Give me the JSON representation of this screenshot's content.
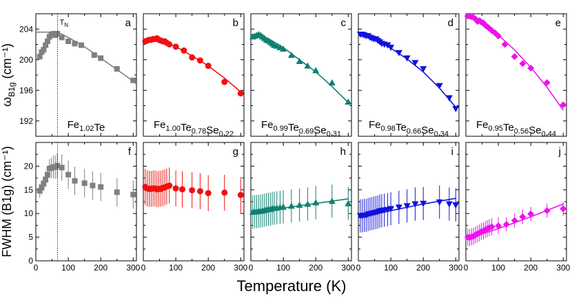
{
  "figure": {
    "xlabel": "Temperature (K)",
    "ylabel_top": "ω_B1g (cm⁻¹)",
    "ylabel_bottom": "FWHM (B1g) (cm⁻¹)",
    "tn_label": "T_N",
    "tn_value": 67
  },
  "chart_data": [
    {
      "type": "scatter",
      "panel": "a",
      "row": "top",
      "color": "#808080",
      "marker": "square",
      "compound": [
        "Fe",
        "1.02",
        "Te",
        ""
      ],
      "xlim": [
        0,
        310
      ],
      "ylim": [
        190,
        206
      ],
      "xticks": [
        0,
        100,
        200,
        300
      ],
      "yticks": [
        192,
        196,
        200,
        204
      ],
      "points": [
        [
          12,
          200.4
        ],
        [
          18,
          201.0
        ],
        [
          24,
          201.3
        ],
        [
          30,
          201.9
        ],
        [
          36,
          202.4
        ],
        [
          42,
          203.0
        ],
        [
          48,
          203.3
        ],
        [
          54,
          203.4
        ],
        [
          60,
          203.2
        ],
        [
          66,
          203.4
        ],
        [
          80,
          202.9
        ],
        [
          100,
          202.4
        ],
        [
          120,
          202.1
        ],
        [
          140,
          201.9
        ],
        [
          180,
          200.6
        ],
        [
          200,
          200.2
        ],
        [
          250,
          198.8
        ],
        [
          300,
          197.3
        ]
      ],
      "fit": [
        [
          0,
          203.6
        ],
        [
          67,
          203.6
        ],
        [
          100,
          202.9
        ],
        [
          150,
          201.7
        ],
        [
          200,
          200.2
        ],
        [
          250,
          198.7
        ],
        [
          300,
          197.2
        ],
        [
          310,
          196.8
        ]
      ]
    },
    {
      "type": "scatter",
      "panel": "b",
      "row": "top",
      "color": "#ee1111",
      "marker": "circle",
      "compound": [
        "Fe",
        "1.00",
        "Te",
        "0.78",
        "Se",
        "0.22"
      ],
      "xlim": [
        0,
        310
      ],
      "ylim": [
        190,
        206
      ],
      "points": [
        [
          6,
          202.4
        ],
        [
          12,
          202.5
        ],
        [
          18,
          202.6
        ],
        [
          24,
          202.6
        ],
        [
          30,
          202.7
        ],
        [
          36,
          202.7
        ],
        [
          42,
          202.8
        ],
        [
          48,
          202.6
        ],
        [
          54,
          202.5
        ],
        [
          60,
          202.4
        ],
        [
          66,
          202.4
        ],
        [
          72,
          202.2
        ],
        [
          80,
          202.0
        ],
        [
          100,
          201.7
        ],
        [
          125,
          201.2
        ],
        [
          150,
          200.3
        ],
        [
          175,
          199.9
        ],
        [
          200,
          199.2
        ],
        [
          250,
          197.1
        ],
        [
          300,
          195.6
        ]
      ],
      "fit": [
        [
          0,
          202.5
        ],
        [
          30,
          202.6
        ],
        [
          60,
          202.4
        ],
        [
          100,
          201.7
        ],
        [
          150,
          200.5
        ],
        [
          200,
          199.2
        ],
        [
          250,
          197.6
        ],
        [
          300,
          195.8
        ]
      ]
    },
    {
      "type": "scatter",
      "panel": "c",
      "row": "top",
      "color": "#108070",
      "marker": "triangle-up",
      "compound": [
        "Fe",
        "0.99",
        "Te",
        "0.69",
        "Se",
        "0.31"
      ],
      "xlim": [
        0,
        310
      ],
      "ylim": [
        190,
        206
      ],
      "points": [
        [
          6,
          203.0
        ],
        [
          12,
          203.1
        ],
        [
          18,
          203.2
        ],
        [
          24,
          203.3
        ],
        [
          30,
          203.2
        ],
        [
          36,
          203.0
        ],
        [
          42,
          202.8
        ],
        [
          48,
          202.6
        ],
        [
          54,
          202.5
        ],
        [
          60,
          202.3
        ],
        [
          66,
          202.1
        ],
        [
          72,
          201.9
        ],
        [
          80,
          201.8
        ],
        [
          90,
          201.6
        ],
        [
          100,
          201.4
        ],
        [
          125,
          200.6
        ],
        [
          150,
          199.8
        ],
        [
          175,
          199.2
        ],
        [
          200,
          198.6
        ],
        [
          250,
          197.0
        ],
        [
          300,
          194.5
        ]
      ],
      "fit": [
        [
          0,
          203.3
        ],
        [
          30,
          203.2
        ],
        [
          60,
          202.6
        ],
        [
          100,
          201.6
        ],
        [
          150,
          200.0
        ],
        [
          200,
          198.4
        ],
        [
          250,
          196.5
        ],
        [
          300,
          194.4
        ]
      ]
    },
    {
      "type": "scatter",
      "panel": "d",
      "row": "top",
      "color": "#1010dd",
      "marker": "triangle-down",
      "compound": [
        "Fe",
        "0.98",
        "Te",
        "0.66",
        "Se",
        "0.34"
      ],
      "xlim": [
        0,
        310
      ],
      "ylim": [
        190,
        206
      ],
      "points": [
        [
          6,
          203.3
        ],
        [
          12,
          203.3
        ],
        [
          18,
          203.2
        ],
        [
          24,
          203.1
        ],
        [
          30,
          203.1
        ],
        [
          36,
          202.9
        ],
        [
          42,
          202.8
        ],
        [
          48,
          202.7
        ],
        [
          54,
          202.7
        ],
        [
          60,
          202.5
        ],
        [
          66,
          202.3
        ],
        [
          72,
          202.1
        ],
        [
          80,
          202.0
        ],
        [
          90,
          201.9
        ],
        [
          100,
          201.6
        ],
        [
          125,
          200.9
        ],
        [
          150,
          200.2
        ],
        [
          175,
          199.6
        ],
        [
          200,
          198.8
        ],
        [
          250,
          196.6
        ],
        [
          280,
          195.0
        ],
        [
          300,
          193.6
        ]
      ],
      "fit": [
        [
          0,
          203.4
        ],
        [
          30,
          203.1
        ],
        [
          60,
          202.5
        ],
        [
          100,
          201.5
        ],
        [
          150,
          200.1
        ],
        [
          200,
          198.4
        ],
        [
          250,
          196.3
        ],
        [
          300,
          193.8
        ]
      ]
    },
    {
      "type": "scatter",
      "panel": "e",
      "row": "top",
      "color": "#ee11ee",
      "marker": "diamond",
      "compound": [
        "Fe",
        "0.95",
        "Te",
        "0.56",
        "Se",
        "0.44"
      ],
      "xlim": [
        0,
        310
      ],
      "ylim": [
        190,
        206
      ],
      "points": [
        [
          6,
          205.7
        ],
        [
          12,
          205.7
        ],
        [
          18,
          205.6
        ],
        [
          24,
          205.5
        ],
        [
          30,
          205.3
        ],
        [
          36,
          205.0
        ],
        [
          42,
          205.1
        ],
        [
          48,
          204.9
        ],
        [
          54,
          204.8
        ],
        [
          60,
          204.5
        ],
        [
          66,
          204.3
        ],
        [
          72,
          204.1
        ],
        [
          80,
          203.8
        ],
        [
          90,
          203.5
        ],
        [
          100,
          203.1
        ],
        [
          120,
          202.0
        ],
        [
          150,
          200.4
        ],
        [
          175,
          199.5
        ],
        [
          200,
          198.9
        ],
        [
          250,
          197.0
        ],
        [
          300,
          194.1
        ]
      ],
      "fit": [
        [
          0,
          205.9
        ],
        [
          30,
          205.4
        ],
        [
          60,
          204.6
        ],
        [
          100,
          203.2
        ],
        [
          150,
          201.3
        ],
        [
          200,
          199.0
        ],
        [
          250,
          196.4
        ],
        [
          300,
          193.4
        ]
      ]
    },
    {
      "type": "scatter",
      "panel": "f",
      "row": "bottom",
      "color": "#808080",
      "marker": "square",
      "xlim": [
        0,
        310
      ],
      "ylim": [
        0,
        25
      ],
      "xticks": [
        0,
        100,
        200,
        300
      ],
      "yticks": [
        0,
        5,
        10,
        15,
        20
      ],
      "ytick_labels": [
        "0",
        "5",
        "10",
        "15",
        "20"
      ],
      "points": [
        [
          12,
          14.8,
          1.5
        ],
        [
          18,
          15.5,
          1.5
        ],
        [
          24,
          16.3,
          1.5
        ],
        [
          30,
          17.2,
          1.6
        ],
        [
          36,
          18.2,
          1.8
        ],
        [
          42,
          19.5,
          2.0
        ],
        [
          48,
          19.6,
          2.2
        ],
        [
          54,
          19.8,
          2.4
        ],
        [
          60,
          19.8,
          2.5
        ],
        [
          66,
          20.1,
          2.6
        ],
        [
          80,
          19.7,
          2.8
        ],
        [
          100,
          18.2,
          3.0
        ],
        [
          120,
          16.9,
          3.0
        ],
        [
          150,
          16.4,
          3.0
        ],
        [
          175,
          15.9,
          3.0
        ],
        [
          200,
          15.6,
          3.0
        ],
        [
          250,
          14.5,
          3.0
        ],
        [
          300,
          14.0,
          3.0
        ]
      ],
      "fit": []
    },
    {
      "type": "scatter",
      "panel": "g",
      "row": "bottom",
      "color": "#ee1111",
      "marker": "circle",
      "xlim": [
        0,
        310
      ],
      "ylim": [
        0,
        25
      ],
      "points": [
        [
          6,
          15.6,
          3.8
        ],
        [
          12,
          15.3,
          3.8
        ],
        [
          18,
          15.2,
          3.8
        ],
        [
          24,
          15.2,
          3.8
        ],
        [
          30,
          15.3,
          3.8
        ],
        [
          36,
          15.3,
          3.8
        ],
        [
          42,
          15.1,
          3.8
        ],
        [
          48,
          15.2,
          3.8
        ],
        [
          54,
          15.2,
          3.8
        ],
        [
          60,
          15.4,
          3.8
        ],
        [
          66,
          15.5,
          3.8
        ],
        [
          72,
          15.7,
          3.8
        ],
        [
          80,
          15.9,
          3.8
        ],
        [
          100,
          15.3,
          3.8
        ],
        [
          120,
          15.1,
          3.8
        ],
        [
          150,
          14.9,
          3.8
        ],
        [
          175,
          14.7,
          3.8
        ],
        [
          200,
          14.3,
          3.8
        ],
        [
          250,
          14.4,
          3.8
        ],
        [
          300,
          13.9,
          3.8
        ]
      ],
      "fit": []
    },
    {
      "type": "scatter",
      "panel": "h",
      "row": "bottom",
      "color": "#108070",
      "marker": "triangle-up",
      "xlim": [
        0,
        310
      ],
      "ylim": [
        0,
        25
      ],
      "points": [
        [
          6,
          10.3,
          3.5
        ],
        [
          12,
          10.4,
          3.5
        ],
        [
          18,
          10.4,
          3.5
        ],
        [
          24,
          10.5,
          3.5
        ],
        [
          30,
          10.5,
          3.5
        ],
        [
          36,
          10.6,
          3.5
        ],
        [
          42,
          10.7,
          3.5
        ],
        [
          48,
          10.8,
          3.5
        ],
        [
          54,
          10.9,
          3.5
        ],
        [
          60,
          10.9,
          3.5
        ],
        [
          66,
          11.1,
          3.5
        ],
        [
          72,
          11.1,
          3.5
        ],
        [
          80,
          11.2,
          3.5
        ],
        [
          90,
          11.3,
          3.5
        ],
        [
          100,
          11.4,
          3.5
        ],
        [
          125,
          11.6,
          3.5
        ],
        [
          150,
          11.8,
          3.5
        ],
        [
          175,
          12.0,
          3.5
        ],
        [
          200,
          12.3,
          3.5
        ],
        [
          250,
          12.6,
          3.5
        ],
        [
          300,
          12.1,
          3.5
        ]
      ],
      "fit": [
        [
          0,
          10.2
        ],
        [
          300,
          13.1
        ]
      ]
    },
    {
      "type": "scatter",
      "panel": "i",
      "row": "bottom",
      "color": "#1010dd",
      "marker": "triangle-down",
      "xlim": [
        0,
        310
      ],
      "ylim": [
        0,
        25
      ],
      "points": [
        [
          6,
          9.5,
          3.5
        ],
        [
          12,
          9.5,
          3.5
        ],
        [
          18,
          9.6,
          3.5
        ],
        [
          24,
          9.6,
          3.5
        ],
        [
          30,
          9.8,
          3.5
        ],
        [
          36,
          9.9,
          3.5
        ],
        [
          42,
          10.0,
          3.5
        ],
        [
          48,
          10.1,
          3.5
        ],
        [
          54,
          10.2,
          3.5
        ],
        [
          60,
          10.3,
          3.5
        ],
        [
          66,
          10.5,
          3.5
        ],
        [
          72,
          10.6,
          3.5
        ],
        [
          80,
          10.7,
          3.5
        ],
        [
          90,
          10.8,
          3.5
        ],
        [
          100,
          11.0,
          3.5
        ],
        [
          125,
          11.3,
          3.5
        ],
        [
          150,
          11.6,
          3.5
        ],
        [
          175,
          12.0,
          3.5
        ],
        [
          200,
          12.1,
          3.5
        ],
        [
          250,
          12.4,
          3.5
        ],
        [
          280,
          12.0,
          3.5
        ],
        [
          300,
          11.8,
          3.5
        ]
      ],
      "fit": [
        [
          0,
          9.1
        ],
        [
          100,
          10.6
        ],
        [
          200,
          12.0
        ],
        [
          300,
          13.2
        ]
      ]
    },
    {
      "type": "scatter",
      "panel": "j",
      "row": "bottom",
      "color": "#ee11ee",
      "marker": "diamond",
      "xlim": [
        0,
        310
      ],
      "ylim": [
        0,
        25
      ],
      "points": [
        [
          6,
          5.0,
          1.8
        ],
        [
          12,
          4.9,
          1.8
        ],
        [
          18,
          5.1,
          1.8
        ],
        [
          24,
          5.2,
          1.8
        ],
        [
          30,
          5.5,
          1.8
        ],
        [
          36,
          5.7,
          1.8
        ],
        [
          42,
          5.9,
          1.8
        ],
        [
          48,
          6.2,
          1.8
        ],
        [
          54,
          6.3,
          1.8
        ],
        [
          60,
          6.6,
          1.8
        ],
        [
          66,
          6.8,
          1.8
        ],
        [
          72,
          7.0,
          1.8
        ],
        [
          80,
          7.2,
          1.8
        ],
        [
          100,
          7.4,
          1.8
        ],
        [
          125,
          7.7,
          1.5
        ],
        [
          150,
          8.5,
          1.5
        ],
        [
          175,
          9.3,
          1.5
        ],
        [
          200,
          9.9,
          1.5
        ],
        [
          250,
          10.6,
          1.5
        ],
        [
          300,
          11.0,
          1.5
        ]
      ],
      "fit": [
        [
          0,
          4.6
        ],
        [
          100,
          6.8
        ],
        [
          200,
          9.3
        ],
        [
          300,
          12.0
        ]
      ]
    }
  ]
}
